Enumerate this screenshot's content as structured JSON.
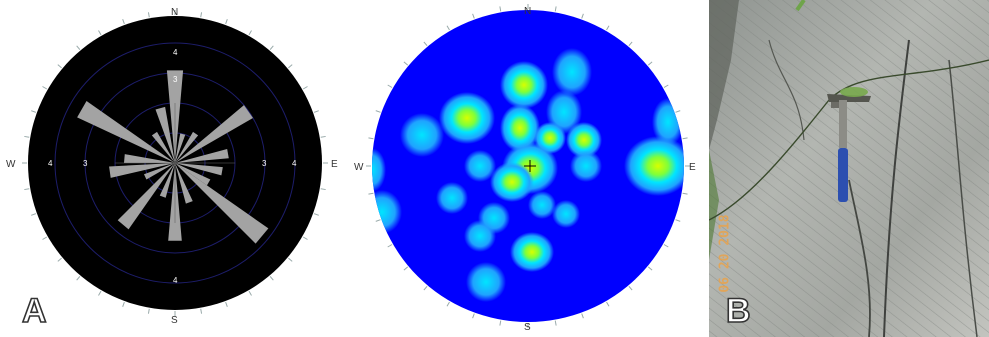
{
  "panels": {
    "a_label": "A",
    "b_label": "B"
  },
  "rose": {
    "compass": {
      "n": "N",
      "e": "E",
      "s": "S",
      "w": "W"
    },
    "ring_labels": [
      "4",
      "3",
      "4",
      "3",
      "4",
      "3",
      "4"
    ],
    "petals": [
      {
        "azimuth": 0,
        "length": 3.1
      },
      {
        "azimuth": 15,
        "length": 1.0
      },
      {
        "azimuth": 35,
        "length": 1.2
      },
      {
        "azimuth": 55,
        "length": 3.0
      },
      {
        "azimuth": 80,
        "length": 1.8
      },
      {
        "azimuth": 100,
        "length": 1.6
      },
      {
        "azimuth": 120,
        "length": 1.3
      },
      {
        "azimuth": 130,
        "length": 3.8
      },
      {
        "azimuth": 160,
        "length": 1.4
      },
      {
        "azimuth": 180,
        "length": 2.6
      },
      {
        "azimuth": 200,
        "length": 1.2
      },
      {
        "azimuth": 220,
        "length": 2.7
      },
      {
        "azimuth": 245,
        "length": 1.1
      },
      {
        "azimuth": 262,
        "length": 2.2
      },
      {
        "azimuth": 275,
        "length": 1.7
      },
      {
        "azimuth": 300,
        "length": 3.6
      },
      {
        "azimuth": 325,
        "length": 1.2
      },
      {
        "azimuth": 345,
        "length": 1.9
      }
    ],
    "colors": {
      "background": "#000000",
      "petal": "#a3a3a3",
      "ring": "#1d1d6b"
    }
  },
  "contour": {
    "compass": {
      "n": "N",
      "e": "E",
      "s": "S",
      "w": "W"
    },
    "colors": {
      "background": "#0000ff",
      "low": "#1fa3ff",
      "mid": "#00e5ff",
      "high": "#7fff3a",
      "peak": "#d7ff00"
    }
  },
  "photo": {
    "datestamp": "06 20 2018"
  }
}
